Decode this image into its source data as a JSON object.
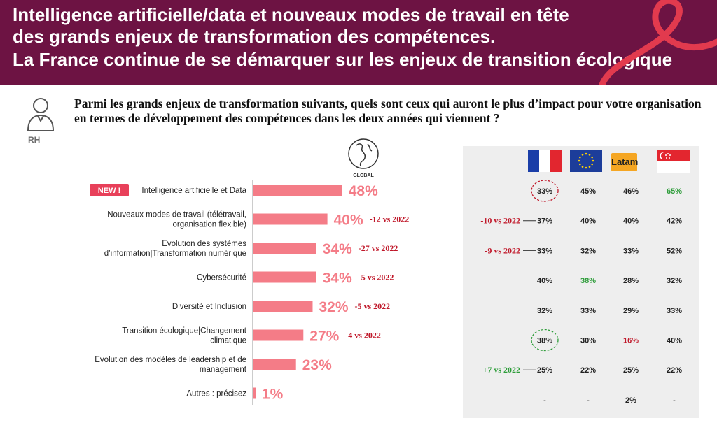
{
  "header": {
    "title_lines": [
      "Intelligence artificielle/data et nouveaux modes de travail en tête",
      "des grands enjeux de transformation des compétences.",
      "La France continue de se démarquer sur les enjeux de transition écologique"
    ]
  },
  "respondent": {
    "label": "RH",
    "icon": "person-icon"
  },
  "question": "Parmi les grands enjeux de transformation suivants, quels sont ceux qui auront le plus d’impact pour votre organisation en termes de développement des compétences dans les deux années qui viennent ?",
  "globe_label": "GLOBAL",
  "badge": {
    "text": "NEW !",
    "color": "#e8405a"
  },
  "colors": {
    "bar": "#f47c87",
    "value_text": "#f47c87",
    "delta_red": "#c0182a",
    "delta_green": "#2e9d3a",
    "panel_bg": "#eeeeee",
    "header_bg": "#6d1343"
  },
  "columns": [
    {
      "key": "fr",
      "flag": "france-flag"
    },
    {
      "key": "eu",
      "flag": "eu-flag"
    },
    {
      "key": "latam",
      "label": "Latam"
    },
    {
      "key": "sg",
      "flag": "singapore-flag"
    }
  ],
  "chart_data": {
    "type": "bar",
    "orientation": "horizontal",
    "xlim": [
      0,
      100
    ],
    "categories": [
      [
        "Intelligence artificielle et Data"
      ],
      [
        "Nouveaux modes de travail (télétravail,",
        "organisation flexible)"
      ],
      [
        "Evolution des systèmes",
        "d’information|Transformation numérique"
      ],
      [
        "Cybersécurité"
      ],
      [
        "Diversité et Inclusion"
      ],
      [
        "Transition écologique|Changement",
        "climatique"
      ],
      [
        "Evolution des modèles de leadership et de",
        "management"
      ],
      [
        "Autres : précisez"
      ]
    ],
    "values": [
      48,
      40,
      34,
      34,
      32,
      27,
      23,
      1
    ],
    "value_labels": [
      "48%",
      "40%",
      "34%",
      "34%",
      "32%",
      "27%",
      "23%",
      "1%"
    ],
    "deltas": [
      "",
      "-12 vs 2022",
      "-27 vs 2022",
      "-5 vs 2022",
      "-5 vs 2022",
      "-4 vs 2022",
      "",
      ""
    ]
  },
  "table": {
    "rows": [
      {
        "fr": "33%",
        "eu": "45%",
        "latam": "46%",
        "sg": "65%",
        "fr_delta": "",
        "fr_circle": "red",
        "sg_color": "green"
      },
      {
        "fr": "37%",
        "eu": "40%",
        "latam": "40%",
        "sg": "42%",
        "fr_delta": "-10 vs 2022",
        "fr_delta_color": "red"
      },
      {
        "fr": "33%",
        "eu": "32%",
        "latam": "33%",
        "sg": "52%",
        "fr_delta": "-9 vs 2022",
        "fr_delta_color": "red"
      },
      {
        "fr": "40%",
        "eu": "38%",
        "latam": "28%",
        "sg": "32%",
        "fr_delta": "",
        "eu_color": "green"
      },
      {
        "fr": "32%",
        "eu": "33%",
        "latam": "29%",
        "sg": "33%",
        "fr_delta": ""
      },
      {
        "fr": "38%",
        "eu": "30%",
        "latam": "16%",
        "sg": "40%",
        "fr_delta": "",
        "fr_circle": "green",
        "latam_color": "red"
      },
      {
        "fr": "25%",
        "eu": "22%",
        "latam": "25%",
        "sg": "22%",
        "fr_delta": "+7 vs 2022",
        "fr_delta_color": "green"
      },
      {
        "fr": "-",
        "eu": "-",
        "latam": "2%",
        "sg": "-",
        "fr_delta": ""
      }
    ]
  }
}
